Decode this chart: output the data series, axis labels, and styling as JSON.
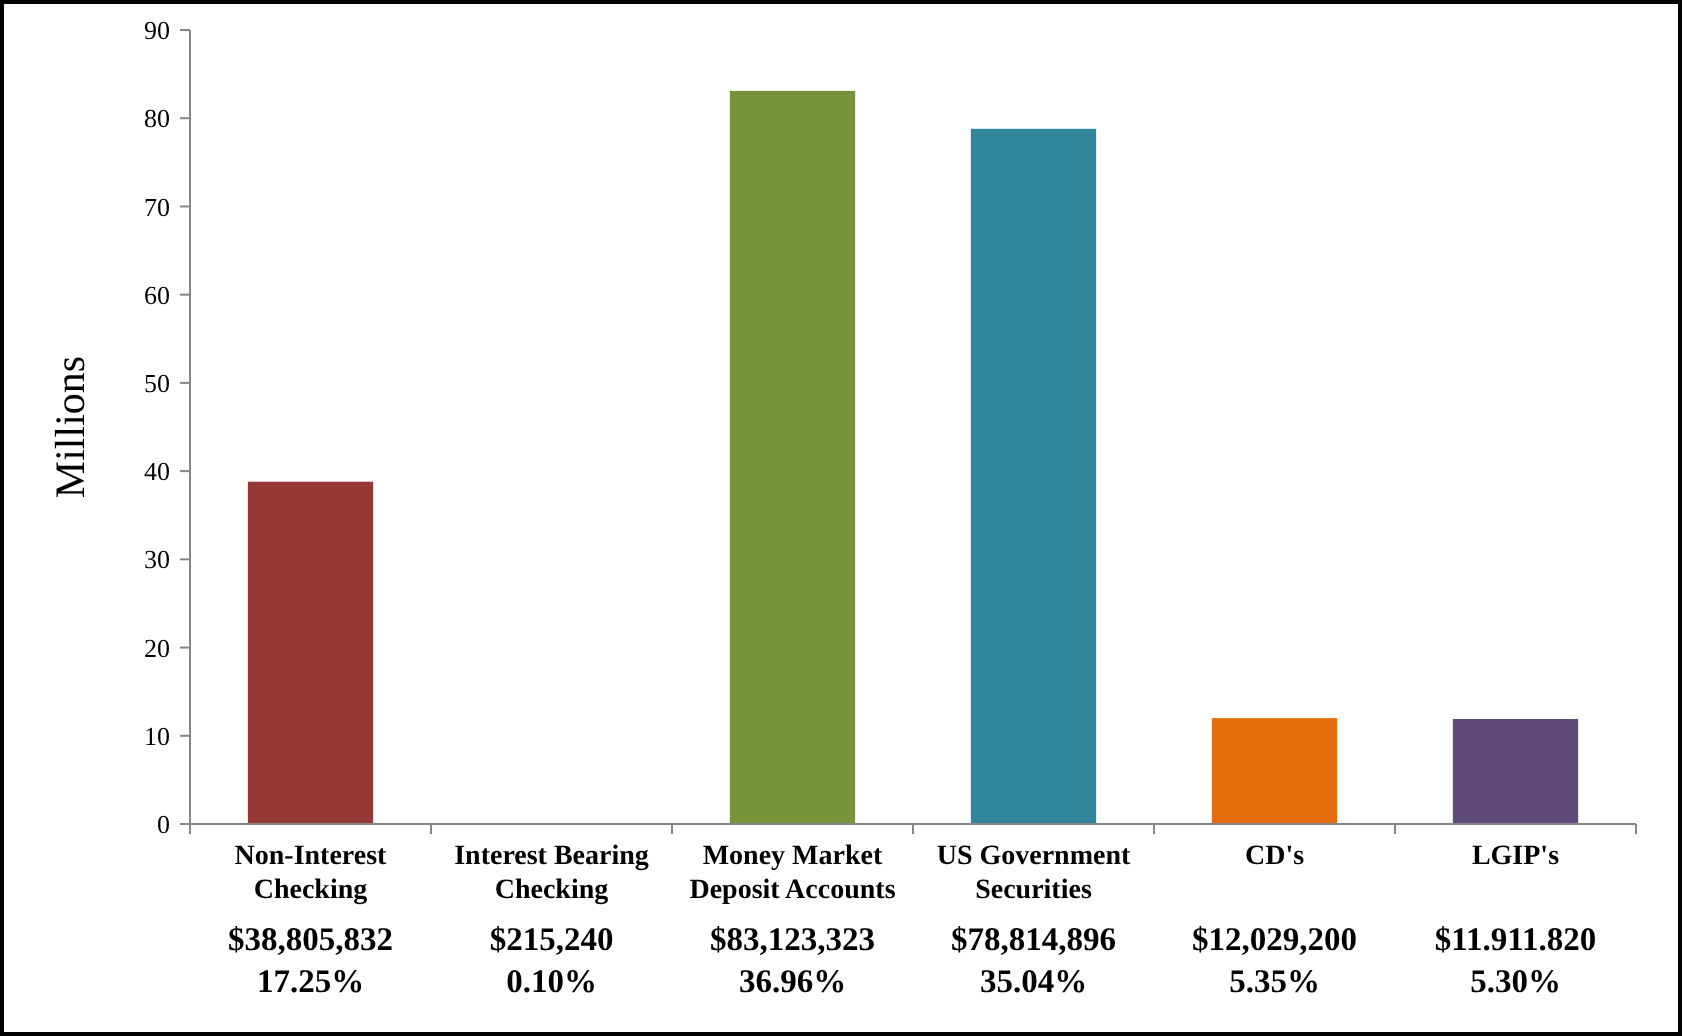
{
  "chart_data": {
    "type": "bar",
    "ylabel": "Millions",
    "categories": [
      "Non-Interest Checking",
      "Interest Bearing Checking",
      "Money Market Deposit Accounts",
      "US Government Securities",
      "CD's",
      "LGIP's"
    ],
    "values": [
      38.8,
      null,
      83.1,
      78.8,
      12.0,
      11.9
    ],
    "colors": [
      "#953735",
      null,
      "#77933c",
      "#31859c",
      "#e46c0a",
      "#604a7b"
    ],
    "annotations": [
      "$38,805,832\n17.25%",
      "$215,240\n0.10%",
      "$83,123,323\n36.96%",
      "$78,814,896\n35.04%",
      "$12,029,200\n5.35%",
      "$11.911.820\n5.30%"
    ],
    "ylim": [
      0,
      90
    ],
    "yticks": [
      0,
      10,
      20,
      30,
      40,
      50,
      60,
      70,
      80,
      90
    ],
    "grid": false
  }
}
